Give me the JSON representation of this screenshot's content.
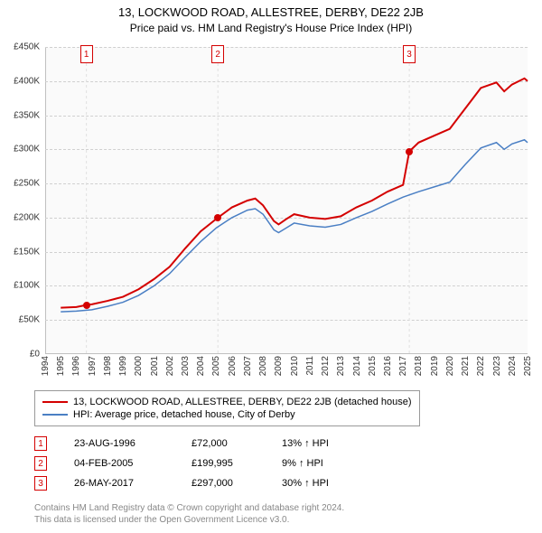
{
  "title": {
    "main": "13, LOCKWOOD ROAD, ALLESTREE, DERBY, DE22 2JB",
    "sub": "Price paid vs. HM Land Registry's House Price Index (HPI)"
  },
  "chart": {
    "type": "line",
    "background_color": "#fafafa",
    "grid_color": "#d0d0d0",
    "y": {
      "min": 0,
      "max": 450000,
      "step": 50000,
      "labels": [
        "£0",
        "£50K",
        "£100K",
        "£150K",
        "£200K",
        "£250K",
        "£300K",
        "£350K",
        "£400K",
        "£450K"
      ],
      "label_fontsize": 10
    },
    "x": {
      "years": [
        1994,
        1995,
        1996,
        1997,
        1998,
        1999,
        2000,
        2001,
        2002,
        2003,
        2004,
        2005,
        2006,
        2007,
        2008,
        2009,
        2010,
        2011,
        2012,
        2013,
        2014,
        2015,
        2016,
        2017,
        2018,
        2019,
        2020,
        2021,
        2022,
        2023,
        2024,
        2025
      ],
      "label_fontsize": 10
    },
    "series": {
      "property": {
        "label": "13, LOCKWOOD ROAD, ALLESTREE, DERBY, DE22 2JB (detached house)",
        "color": "#d40000",
        "line_width": 2,
        "data": [
          [
            1995.0,
            68000
          ],
          [
            1996.0,
            69000
          ],
          [
            1996.65,
            72000
          ],
          [
            1997.0,
            73000
          ],
          [
            1998.0,
            78000
          ],
          [
            1999.0,
            84000
          ],
          [
            2000.0,
            95000
          ],
          [
            2001.0,
            110000
          ],
          [
            2002.0,
            128000
          ],
          [
            2003.0,
            155000
          ],
          [
            2004.0,
            180000
          ],
          [
            2005.1,
            199995
          ],
          [
            2006.0,
            215000
          ],
          [
            2007.0,
            225000
          ],
          [
            2007.5,
            228000
          ],
          [
            2008.0,
            218000
          ],
          [
            2008.7,
            195000
          ],
          [
            2009.0,
            190000
          ],
          [
            2009.5,
            198000
          ],
          [
            2010.0,
            205000
          ],
          [
            2011.0,
            200000
          ],
          [
            2012.0,
            198000
          ],
          [
            2013.0,
            202000
          ],
          [
            2014.0,
            215000
          ],
          [
            2015.0,
            225000
          ],
          [
            2016.0,
            238000
          ],
          [
            2017.0,
            248000
          ],
          [
            2017.4,
            297000
          ],
          [
            2018.0,
            310000
          ],
          [
            2019.0,
            320000
          ],
          [
            2020.0,
            330000
          ],
          [
            2021.0,
            360000
          ],
          [
            2022.0,
            390000
          ],
          [
            2023.0,
            398000
          ],
          [
            2023.5,
            385000
          ],
          [
            2024.0,
            395000
          ],
          [
            2024.8,
            404000
          ],
          [
            2025.0,
            400000
          ]
        ]
      },
      "hpi": {
        "label": "HPI: Average price, detached house, City of Derby",
        "color": "#4a7fc4",
        "line_width": 1.5,
        "data": [
          [
            1995.0,
            62000
          ],
          [
            1996.0,
            63000
          ],
          [
            1997.0,
            65000
          ],
          [
            1998.0,
            70000
          ],
          [
            1999.0,
            76000
          ],
          [
            2000.0,
            86000
          ],
          [
            2001.0,
            100000
          ],
          [
            2002.0,
            118000
          ],
          [
            2003.0,
            142000
          ],
          [
            2004.0,
            165000
          ],
          [
            2005.0,
            185000
          ],
          [
            2006.0,
            200000
          ],
          [
            2007.0,
            211000
          ],
          [
            2007.5,
            213000
          ],
          [
            2008.0,
            205000
          ],
          [
            2008.7,
            182000
          ],
          [
            2009.0,
            178000
          ],
          [
            2009.5,
            185000
          ],
          [
            2010.0,
            192000
          ],
          [
            2011.0,
            188000
          ],
          [
            2012.0,
            186000
          ],
          [
            2013.0,
            190000
          ],
          [
            2014.0,
            200000
          ],
          [
            2015.0,
            209000
          ],
          [
            2016.0,
            220000
          ],
          [
            2017.0,
            230000
          ],
          [
            2018.0,
            238000
          ],
          [
            2019.0,
            245000
          ],
          [
            2020.0,
            252000
          ],
          [
            2021.0,
            278000
          ],
          [
            2022.0,
            302000
          ],
          [
            2023.0,
            310000
          ],
          [
            2023.5,
            300000
          ],
          [
            2024.0,
            308000
          ],
          [
            2024.8,
            314000
          ],
          [
            2025.0,
            310000
          ]
        ]
      }
    },
    "sales_markers": [
      {
        "n": "1",
        "year": 1996.65,
        "price": 72000,
        "color": "#d40000"
      },
      {
        "n": "2",
        "year": 2005.1,
        "price": 199995,
        "color": "#d40000"
      },
      {
        "n": "3",
        "year": 2017.4,
        "price": 297000,
        "color": "#d40000"
      }
    ]
  },
  "legend": {
    "fontsize": 11,
    "rows": [
      {
        "color": "#d40000",
        "label": "13, LOCKWOOD ROAD, ALLESTREE, DERBY, DE22 2JB (detached house)"
      },
      {
        "color": "#4a7fc4",
        "label": "HPI: Average price, detached house, City of Derby"
      }
    ]
  },
  "sales_table": {
    "rows": [
      {
        "n": "1",
        "color": "#d40000",
        "date": "23-AUG-1996",
        "price": "£72,000",
        "pct": "13% ↑ HPI"
      },
      {
        "n": "2",
        "color": "#d40000",
        "date": "04-FEB-2005",
        "price": "£199,995",
        "pct": "9% ↑ HPI"
      },
      {
        "n": "3",
        "color": "#d40000",
        "date": "26-MAY-2017",
        "price": "£297,000",
        "pct": "30% ↑ HPI"
      }
    ]
  },
  "copyright": {
    "line1": "Contains HM Land Registry data © Crown copyright and database right 2024.",
    "line2": "This data is licensed under the Open Government Licence v3.0."
  }
}
